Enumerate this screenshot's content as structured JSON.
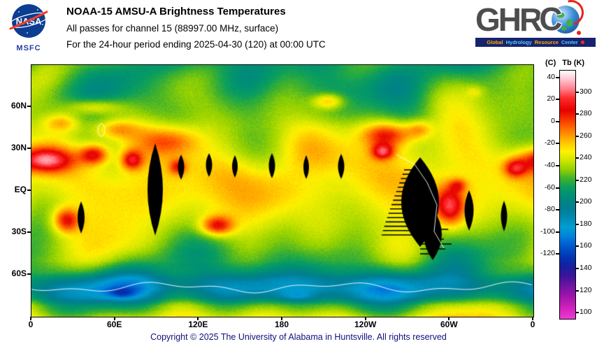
{
  "header": {
    "nasa_logo_text": "NASA",
    "msfc_label": "MSFC",
    "title": "NOAA-15 AMSU-A Brightness Temperatures",
    "subtitle": "All passes for channel 15 (88997.00 MHz, surface)",
    "period_line": "For the 24-hour period ending 2025-04-30 (120) at 00:00 UTC",
    "ghrc": {
      "acronym": "GHRC",
      "tagline_words": [
        "Global",
        "Hydrology",
        "Resource",
        "Center"
      ],
      "tagline_colors": [
        "#ffaa00",
        "#55ccff",
        "#ffaa00",
        "#55ccff"
      ]
    }
  },
  "map": {
    "lat_ticks": [
      "60N",
      "30N",
      "EQ",
      "30S",
      "60S"
    ],
    "lon_ticks": [
      "0",
      "60E",
      "120E",
      "180",
      "120W",
      "60W",
      "0"
    ]
  },
  "colorbar": {
    "unit_celsius": "(C)",
    "unit_kelvin": "Tb (K)",
    "celsius_ticks": [
      "40",
      "20",
      "0",
      "-20",
      "-40",
      "-60",
      "-80",
      "-100",
      "-120"
    ],
    "kelvin_ticks": [
      "300",
      "280",
      "260",
      "240",
      "220",
      "200",
      "180",
      "160",
      "140",
      "120",
      "100"
    ],
    "gradient": [
      {
        "k": 320,
        "color": "#ffffff"
      },
      {
        "k": 312,
        "color": "#ffc4ce"
      },
      {
        "k": 303,
        "color": "#ff7a86"
      },
      {
        "k": 295,
        "color": "#ff2a2a"
      },
      {
        "k": 284,
        "color": "#e60000"
      },
      {
        "k": 271,
        "color": "#ff5400"
      },
      {
        "k": 262,
        "color": "#ff9400"
      },
      {
        "k": 254,
        "color": "#ffc800"
      },
      {
        "k": 247,
        "color": "#fff200"
      },
      {
        "k": 239,
        "color": "#d2e600"
      },
      {
        "k": 231,
        "color": "#96d200"
      },
      {
        "k": 223,
        "color": "#46b428"
      },
      {
        "k": 215,
        "color": "#0ea05a"
      },
      {
        "k": 208,
        "color": "#009272"
      },
      {
        "k": 201,
        "color": "#008484"
      },
      {
        "k": 194,
        "color": "#007e96"
      },
      {
        "k": 186,
        "color": "#008cb4"
      },
      {
        "k": 178,
        "color": "#009ed2"
      },
      {
        "k": 170,
        "color": "#0082dc"
      },
      {
        "k": 161,
        "color": "#0058cc"
      },
      {
        "k": 152,
        "color": "#0038b4"
      },
      {
        "k": 143,
        "color": "#14209e"
      },
      {
        "k": 134,
        "color": "#3c1498"
      },
      {
        "k": 125,
        "color": "#6e14a2"
      },
      {
        "k": 116,
        "color": "#9e14ac"
      },
      {
        "k": 107,
        "color": "#c81eb8"
      },
      {
        "k": 98,
        "color": "#e632cc"
      },
      {
        "k": 95,
        "color": "#ee3cd2"
      }
    ]
  },
  "colors": {
    "nasa_blue": "#0b3d91",
    "nasa_red": "#fc3d21",
    "ghrc_navy": "#16246e",
    "ghrc_red": "#e8231a",
    "footer_text": "#10107c"
  },
  "footer": {
    "copyright": "Copyright © 2025 The University of Alabama in Huntsville. All rights reserved"
  }
}
